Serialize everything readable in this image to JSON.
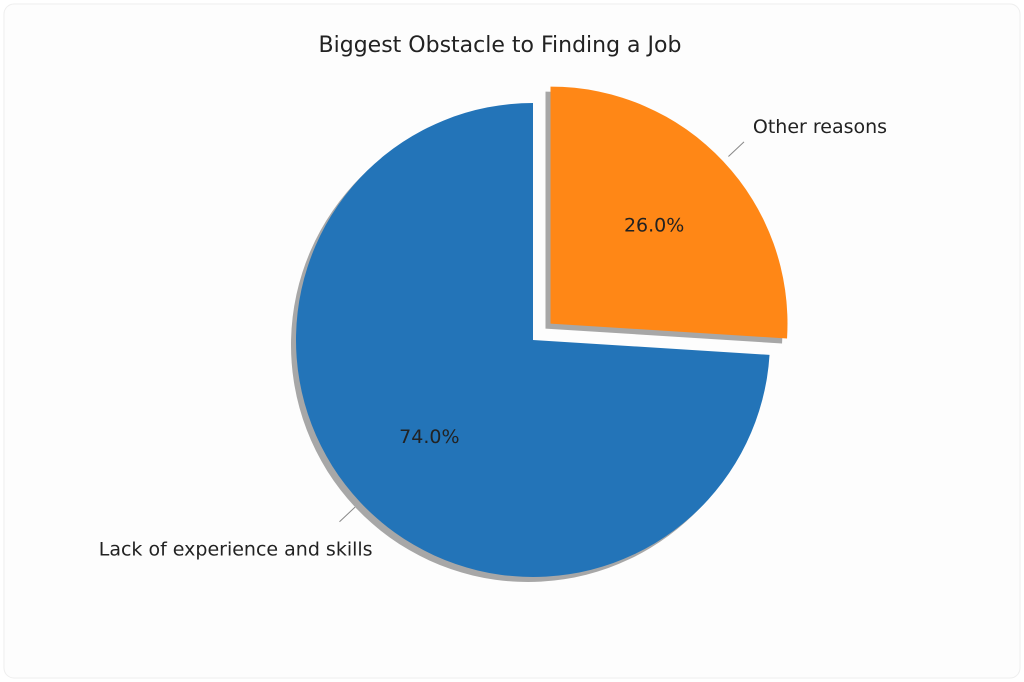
{
  "chart_data": {
    "type": "pie",
    "title": "Biggest Obstacle to Finding a Job",
    "categories": [
      "Lack of experience and skills",
      "Other reasons"
    ],
    "values": [
      74,
      26
    ],
    "value_labels": [
      "74.0%",
      "26.0%"
    ],
    "colors": [
      "#2374b8",
      "#ff8716"
    ]
  }
}
